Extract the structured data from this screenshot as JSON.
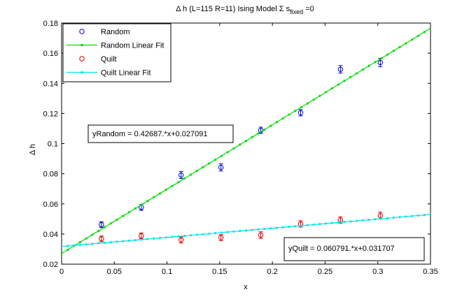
{
  "chart_data": {
    "type": "scatter",
    "title_main": "Δ h (L=115 R=11) Ising Model Σ s",
    "title_sub": "fixed",
    "title_tail": " =0",
    "xlabel": "x",
    "ylabel": "Δ h",
    "xlim": [
      0,
      0.35
    ],
    "ylim": [
      0.02,
      0.18
    ],
    "xticks": [
      "0",
      "0.05",
      "0.1",
      "0.15",
      "0.2",
      "0.25",
      "0.3",
      "0.35"
    ],
    "xtick_values": [
      0,
      0.05,
      0.1,
      0.15,
      0.2,
      0.25,
      0.3,
      0.35
    ],
    "yticks": [
      "0.02",
      "0.04",
      "0.06",
      "0.08",
      "0.1",
      "0.12",
      "0.14",
      "0.16",
      "0.18"
    ],
    "ytick_values": [
      0.02,
      0.04,
      0.06,
      0.08,
      0.1,
      0.12,
      0.14,
      0.16,
      0.18
    ],
    "grid": false,
    "legend_position": "top-left",
    "series": [
      {
        "name": "Random",
        "kind": "points",
        "color": "#0000cc",
        "x": [
          0.0378,
          0.0756,
          0.1134,
          0.1512,
          0.189,
          0.2268,
          0.2646,
          0.3024
        ],
        "y": [
          0.0462,
          0.0577,
          0.0791,
          0.0842,
          0.1088,
          0.1205,
          0.1493,
          0.1538
        ],
        "err": [
          0.0019,
          0.002,
          0.0023,
          0.0024,
          0.0021,
          0.0021,
          0.0025,
          0.0028
        ]
      },
      {
        "name": "Random Linear Fit",
        "kind": "line",
        "color": "#00dd00",
        "slope": 0.42687,
        "intercept": 0.027091
      },
      {
        "name": "Quilt",
        "kind": "points",
        "color": "#dd0000",
        "x": [
          0.0378,
          0.0756,
          0.1134,
          0.1512,
          0.189,
          0.2268,
          0.2646,
          0.3024
        ],
        "y": [
          0.0368,
          0.0388,
          0.0361,
          0.0376,
          0.0393,
          0.0467,
          0.0493,
          0.0522
        ],
        "err": [
          0.0019,
          0.0019,
          0.002,
          0.002,
          0.0022,
          0.0021,
          0.0021,
          0.0023
        ]
      },
      {
        "name": "Quilt Linear Fit",
        "kind": "line",
        "color": "#00e5e5",
        "slope": 0.060791,
        "intercept": 0.031707
      }
    ],
    "annotations": [
      {
        "text": "yRandom = 0.42687.*x+0.027091"
      },
      {
        "text": "yQuilt = 0.060791.*x+0.031707"
      }
    ]
  }
}
